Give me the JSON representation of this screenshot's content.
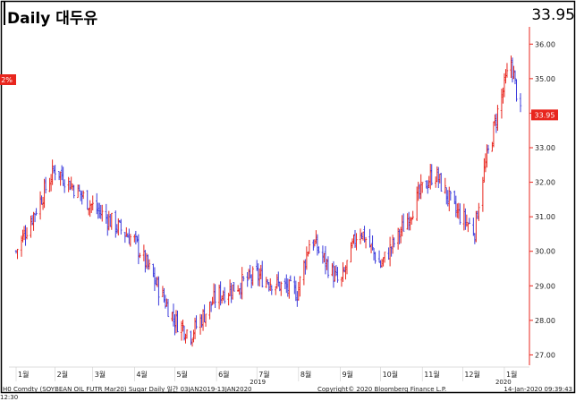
{
  "header": {
    "title": "Daily 대두유",
    "last_value": "33.95"
  },
  "footer": {
    "left": "H0 Comdty (SOYBEAN OIL FUTR  Mar20) Sugar Daily  일간 03JAN2019-13JAN2020",
    "center": "Copyright© 2020 Bloomberg Finance L.P.",
    "right": "14-Jan-2020 09:39:43",
    "corner": "12:30"
  },
  "left_axis_marker": "2%",
  "colors": {
    "up": "#e8261e",
    "down": "#3b3bdc",
    "axis": "#e8261e",
    "marker_bg": "#e8261e"
  },
  "chart_data": {
    "type": "bar",
    "style": "ohlc",
    "title": "Daily 대두유",
    "ylabel": "",
    "ylim": [
      26.7,
      36.5
    ],
    "yticks": [
      "27.00",
      "28.00",
      "29.00",
      "30.00",
      "31.00",
      "32.00",
      "33.00",
      "34.00",
      "35.00",
      "36.00"
    ],
    "last_price_label": "33.95",
    "x_months": [
      "1월",
      "2월",
      "3월",
      "4월",
      "5월",
      "6월",
      "7월",
      "8월",
      "9월",
      "10월",
      "11월",
      "12월",
      "1월"
    ],
    "x_years": [
      "2019",
      "2020"
    ],
    "grid": false,
    "key_points": [
      {
        "date": "2019-01-03",
        "price": 30.0
      },
      {
        "date": "2019-02-01",
        "price": 32.4
      },
      {
        "date": "2019-03-01",
        "price": 31.3
      },
      {
        "date": "2019-04-01",
        "price": 30.3
      },
      {
        "date": "2019-05-01",
        "price": 28.0
      },
      {
        "date": "2019-05-13",
        "price": 27.6
      },
      {
        "date": "2019-06-01",
        "price": 28.7
      },
      {
        "date": "2019-07-01",
        "price": 29.3
      },
      {
        "date": "2019-07-31",
        "price": 28.8
      },
      {
        "date": "2019-08-10",
        "price": 30.4
      },
      {
        "date": "2019-09-01",
        "price": 29.0
      },
      {
        "date": "2019-09-15",
        "price": 30.7
      },
      {
        "date": "2019-10-01",
        "price": 29.6
      },
      {
        "date": "2019-10-15",
        "price": 30.5
      },
      {
        "date": "2019-11-01",
        "price": 31.8
      },
      {
        "date": "2019-11-10",
        "price": 32.3
      },
      {
        "date": "2019-11-25",
        "price": 31.2
      },
      {
        "date": "2019-12-10",
        "price": 30.6
      },
      {
        "date": "2019-12-15",
        "price": 32.0
      },
      {
        "date": "2019-12-28",
        "price": 34.2
      },
      {
        "date": "2020-01-06",
        "price": 35.5
      },
      {
        "date": "2020-01-13",
        "price": 33.95
      }
    ]
  }
}
